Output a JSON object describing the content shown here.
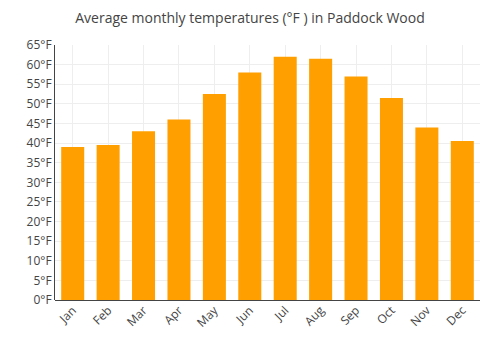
{
  "chart_data": {
    "type": "bar",
    "title": "Average monthly temperatures (°F ) in Paddock Wood",
    "categories": [
      "Jan",
      "Feb",
      "Mar",
      "Apr",
      "May",
      "Jun",
      "Jul",
      "Aug",
      "Sep",
      "Oct",
      "Nov",
      "Dec"
    ],
    "values": [
      39,
      39.5,
      43,
      46,
      52.5,
      58,
      62,
      61.5,
      57,
      51.5,
      44,
      40.5
    ],
    "color": "#FFA000",
    "ylim": [
      0,
      65
    ],
    "yticks": [
      {
        "value": 0,
        "label": "0°F"
      },
      {
        "value": 5,
        "label": "5°F"
      },
      {
        "value": 10,
        "label": "10°F"
      },
      {
        "value": 15,
        "label": "15°F"
      },
      {
        "value": 20,
        "label": "20°F"
      },
      {
        "value": 25,
        "label": "25°F"
      },
      {
        "value": 30,
        "label": "30°F"
      },
      {
        "value": 35,
        "label": "35°F"
      },
      {
        "value": 40,
        "label": "40°F"
      },
      {
        "value": 45,
        "label": "45°F"
      },
      {
        "value": 50,
        "label": "50°F"
      },
      {
        "value": 55,
        "label": "55°F"
      },
      {
        "value": 60,
        "label": "60°F"
      },
      {
        "value": 65,
        "label": "65°F"
      }
    ],
    "grid": true
  }
}
